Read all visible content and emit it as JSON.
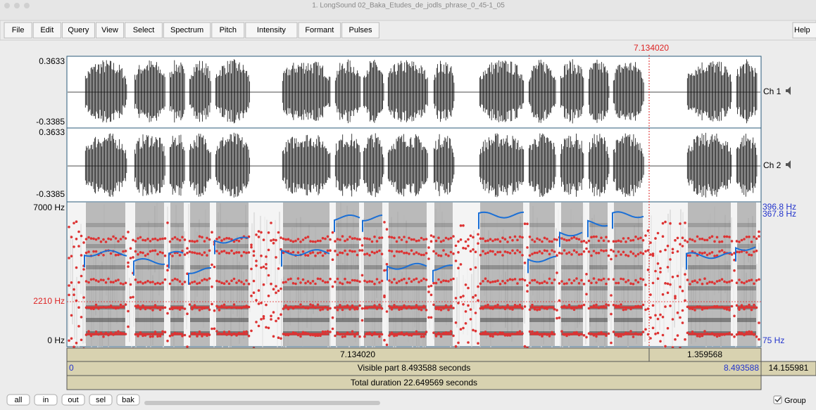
{
  "window": {
    "title": "1. LongSound 02_Baka_Etudes_de_jodls_phrase_0_45-1_05"
  },
  "menu": [
    "File",
    "Edit",
    "Query",
    "View",
    "Select",
    "Spectrum",
    "Pitch",
    "Intensity",
    "Formant",
    "Pulses"
  ],
  "help": "Help",
  "cursor": {
    "time": "7.134020"
  },
  "channels": [
    {
      "top": "0.3633",
      "bottom": "-0.3385",
      "label": "Ch 1"
    },
    {
      "top": "0.3633",
      "bottom": "-0.3385",
      "label": "Ch 2"
    }
  ],
  "spectrogram": {
    "top": "7000 Hz",
    "cursor_freq": "2210 Hz",
    "bottom": "0 Hz",
    "pitch_top": "396.8 Hz",
    "pitch_cursor": "367.8 Hz",
    "pitch_bottom": "75 Hz"
  },
  "time_bars": {
    "selection_left": "7.134020",
    "selection_right": "1.359568",
    "visible_start": "0",
    "visible_label": "Visible part 8.493588 seconds",
    "visible_end": "8.493588",
    "right_hidden": "14.155981",
    "total": "Total duration 22.649569 seconds"
  },
  "buttons": [
    "all",
    "in",
    "out",
    "sel",
    "bak"
  ],
  "group": "Group"
}
